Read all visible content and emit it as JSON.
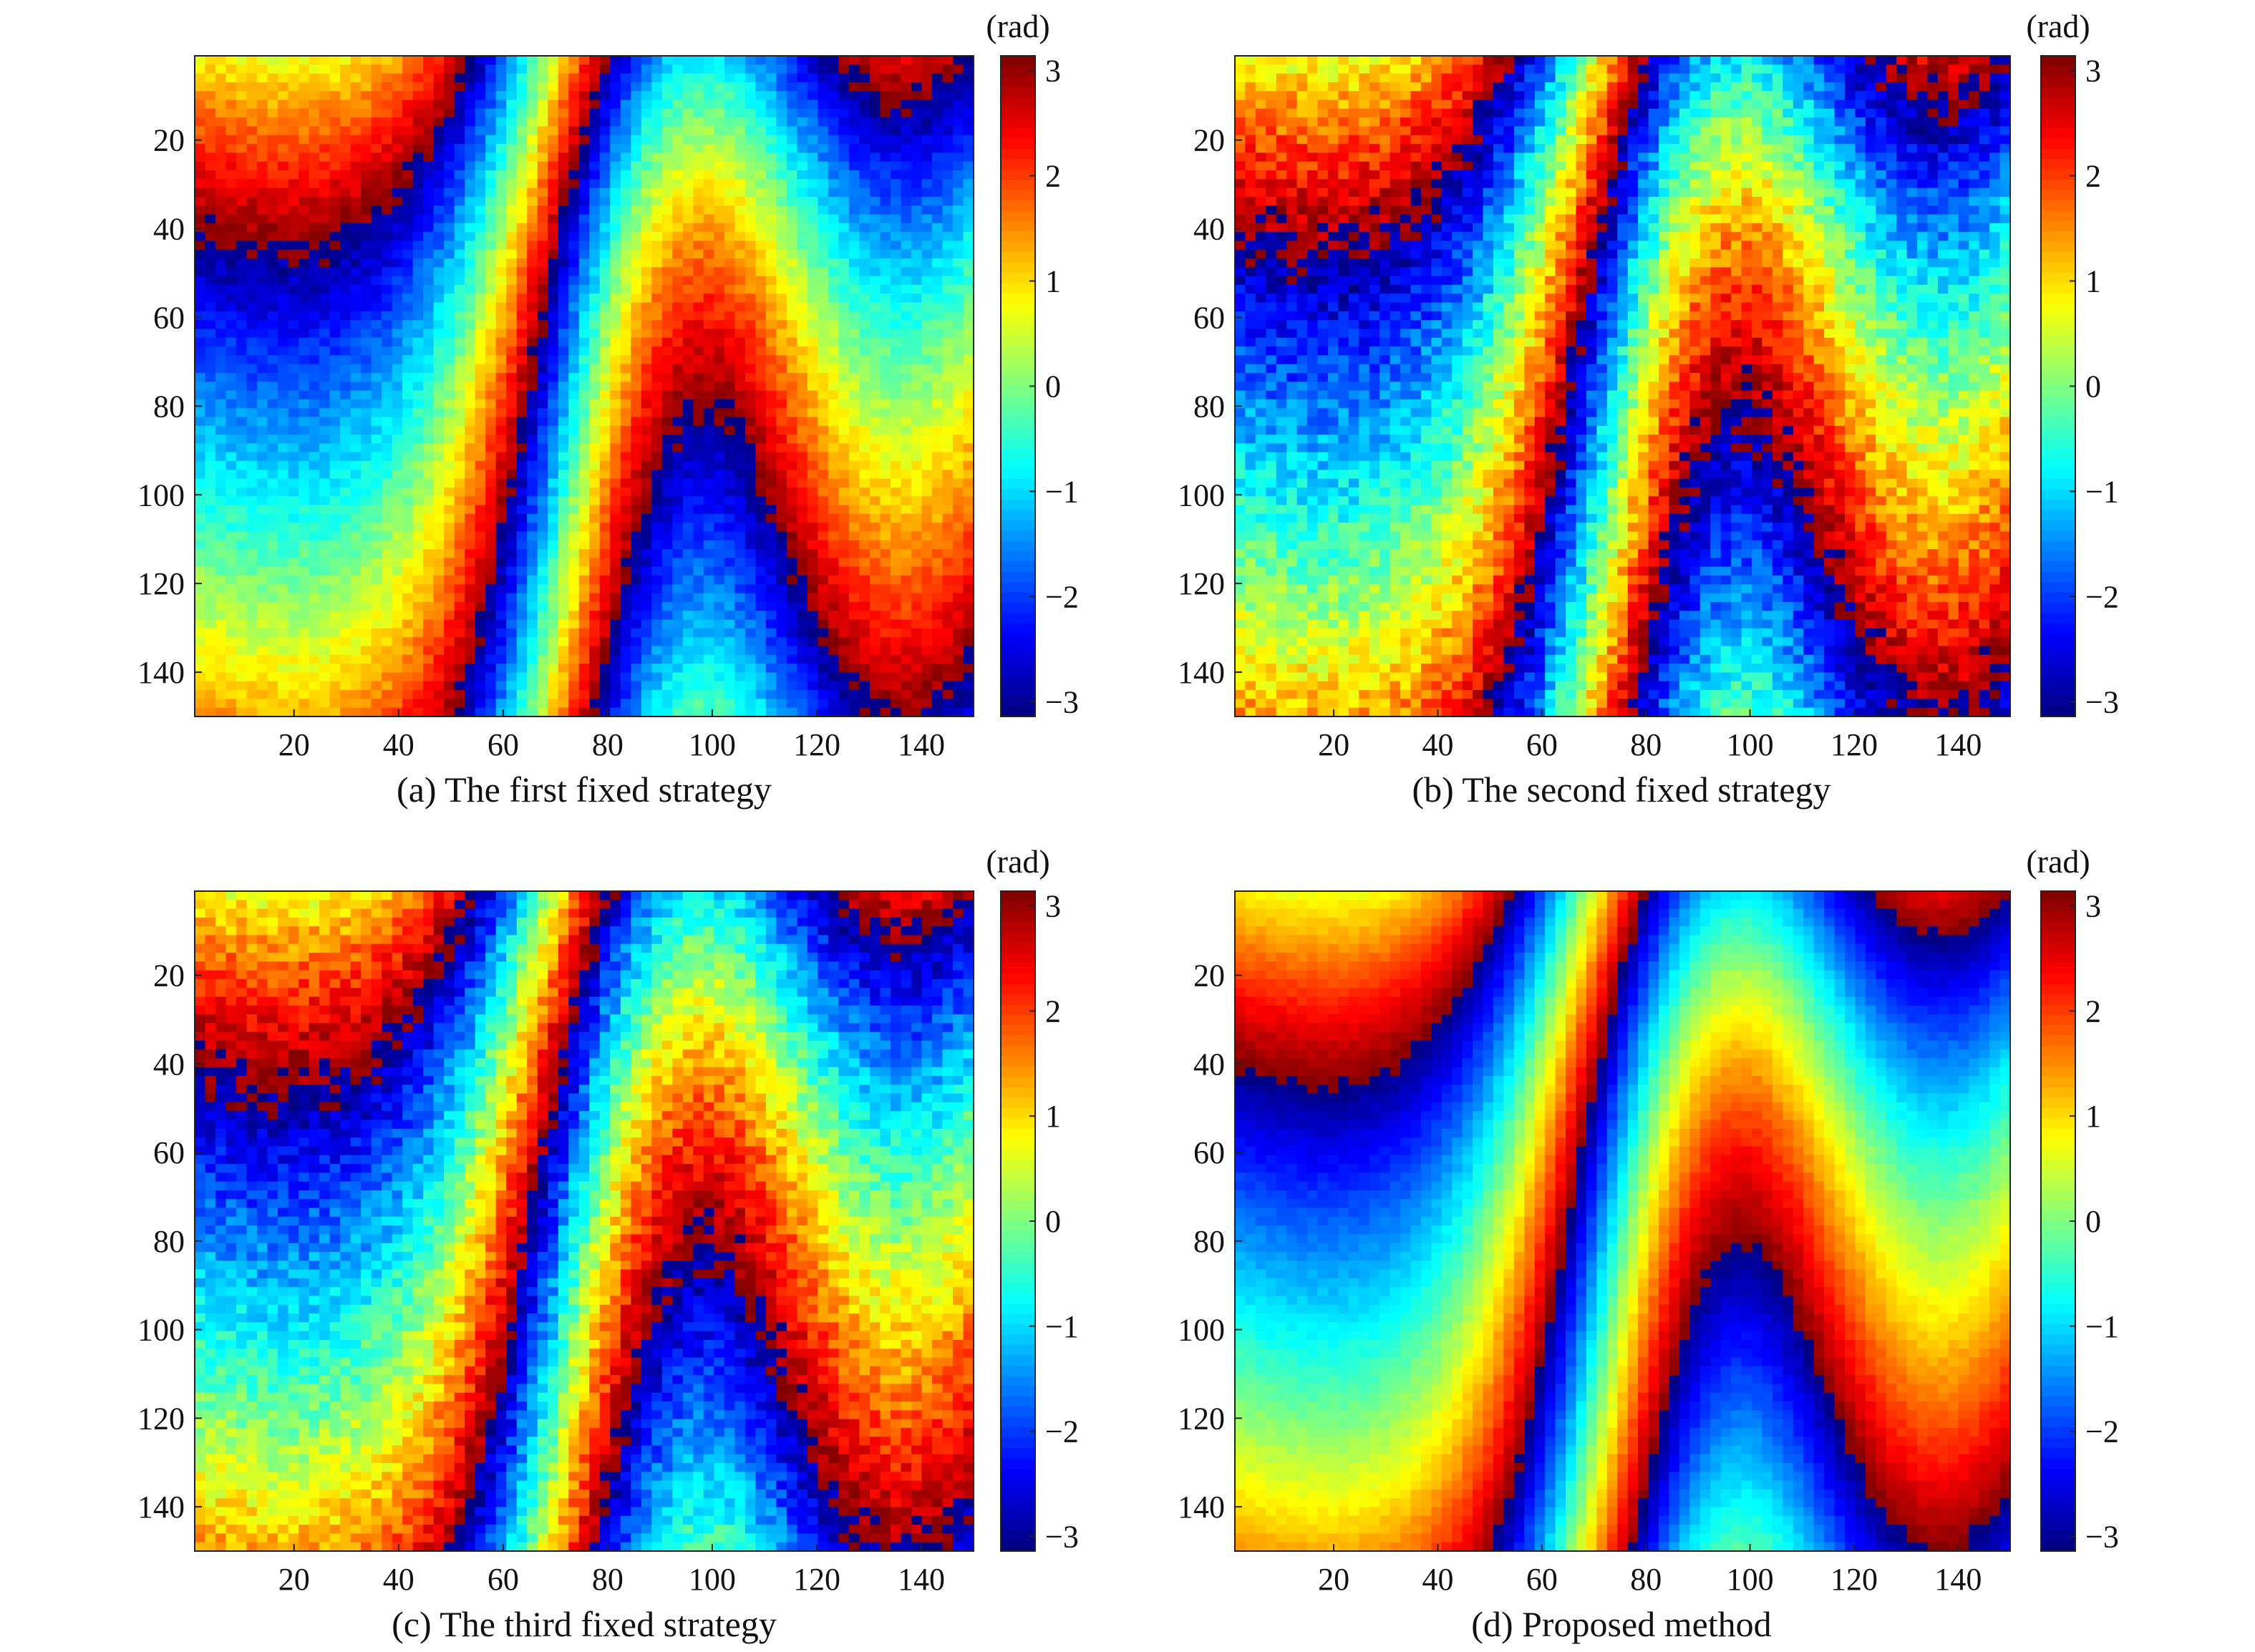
{
  "figure": {
    "colormap": "jet",
    "colors": [
      "#00008f",
      "#0000ff",
      "#00ffff",
      "#ffff00",
      "#ff0000",
      "#800000"
    ]
  },
  "chart_data": [
    {
      "type": "heatmap",
      "caption": "(a) The first fixed strategy",
      "colorbar": {
        "label": "(rad)",
        "range": [
          -3.14,
          3.14
        ],
        "ticks": [
          3,
          2,
          1,
          0,
          -1,
          -2,
          -3
        ]
      },
      "x_ticks": [
        20,
        40,
        60,
        80,
        100,
        120,
        140
      ],
      "y_ticks": [
        20,
        40,
        60,
        80,
        100,
        120,
        140
      ],
      "xlim": [
        1,
        150
      ],
      "ylim": [
        1,
        150
      ],
      "noise": 0.25
    },
    {
      "type": "heatmap",
      "caption": "(b) The second fixed strategy",
      "colorbar": {
        "label": "(rad)",
        "range": [
          -3.14,
          3.14
        ],
        "ticks": [
          3,
          2,
          1,
          0,
          -1,
          -2,
          -3
        ]
      },
      "x_ticks": [
        20,
        40,
        60,
        80,
        100,
        120,
        140
      ],
      "y_ticks": [
        20,
        40,
        60,
        80,
        100,
        120,
        140
      ],
      "xlim": [
        1,
        150
      ],
      "ylim": [
        1,
        150
      ],
      "noise": 0.45
    },
    {
      "type": "heatmap",
      "caption": "(c) The third fixed strategy",
      "colorbar": {
        "label": "(rad)",
        "range": [
          -3.14,
          3.14
        ],
        "ticks": [
          3,
          2,
          1,
          0,
          -1,
          -2,
          -3
        ]
      },
      "x_ticks": [
        20,
        40,
        60,
        80,
        100,
        120,
        140
      ],
      "y_ticks": [
        20,
        40,
        60,
        80,
        100,
        120,
        140
      ],
      "xlim": [
        1,
        150
      ],
      "ylim": [
        1,
        150
      ],
      "noise": 0.4
    },
    {
      "type": "heatmap",
      "caption": "(d) Proposed method",
      "colorbar": {
        "label": "(rad)",
        "range": [
          -3.14,
          3.14
        ],
        "ticks": [
          3,
          2,
          1,
          0,
          -1,
          -2,
          -3
        ]
      },
      "x_ticks": [
        20,
        40,
        60,
        80,
        100,
        120,
        140
      ],
      "y_ticks": [
        20,
        40,
        60,
        80,
        100,
        120,
        140
      ],
      "xlim": [
        1,
        150
      ],
      "ylim": [
        1,
        150
      ],
      "noise": 0.1
    }
  ]
}
